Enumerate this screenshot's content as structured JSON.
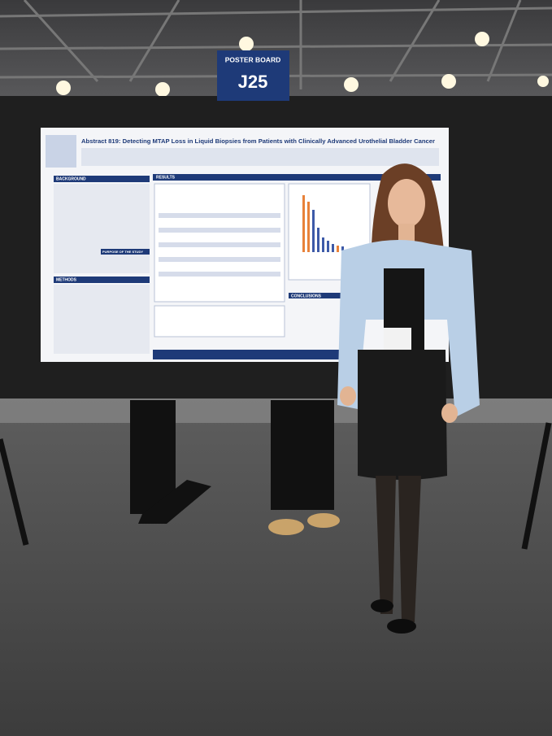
{
  "sign": {
    "label": "POSTER BOARD",
    "code": "J25"
  },
  "poster": {
    "title": "Abstract 819: Detecting MTAP Loss in Liquid Biopsies from Patients with Clinically Advanced Urothelial Bladder Cancer",
    "sections": {
      "background": "BACKGROUND",
      "purpose": "PURPOSE OF THE STUDY",
      "methods": "METHODS",
      "results": "RESULTS",
      "conclusions": "CONCLUSIONS"
    }
  }
}
